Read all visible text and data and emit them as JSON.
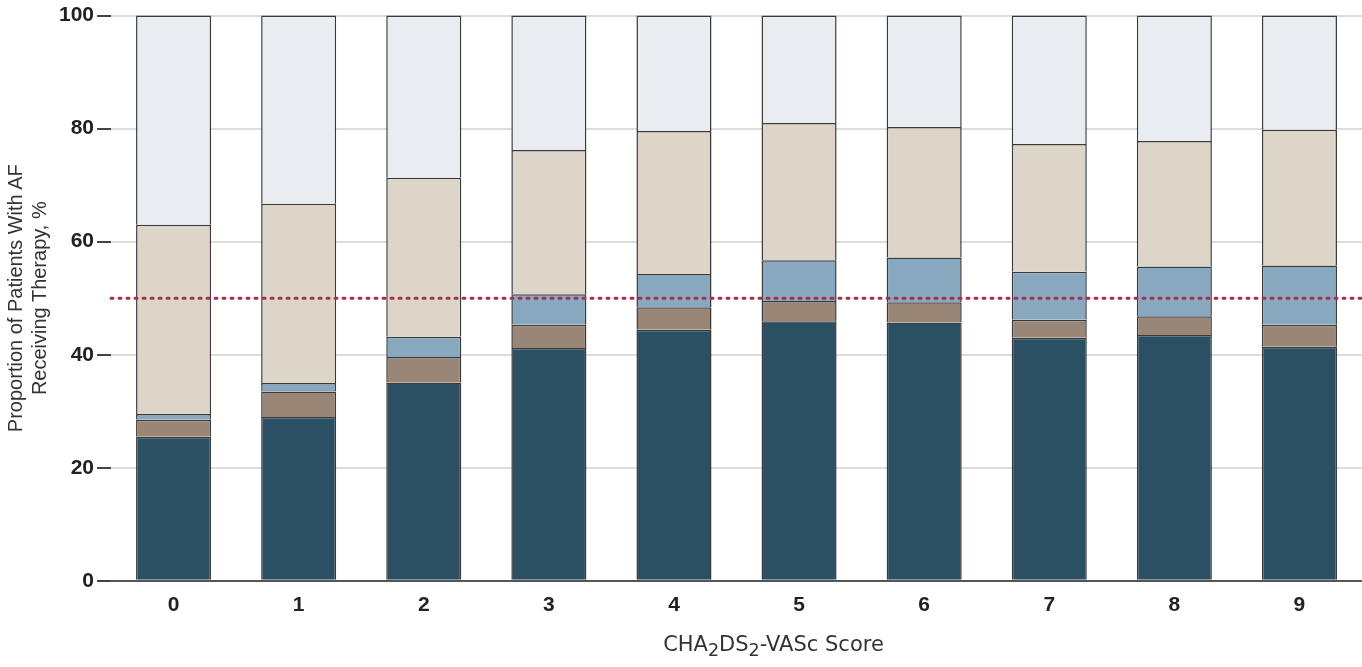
{
  "chart_data": {
    "type": "bar",
    "stacked": true,
    "xlabel": "CHA$_{2}$DS$_{2}$-VASc Score",
    "ylabel": "Proportion of Patients With AF\nReceiving Therapy, %",
    "categories": [
      "0",
      "1",
      "2",
      "3",
      "4",
      "5",
      "6",
      "7",
      "8",
      "9"
    ],
    "series": [
      {
        "color": "#2b5063",
        "values": [
          25.5,
          29,
          35.1,
          41.2,
          44.4,
          45.9,
          45.7,
          43,
          43.5,
          41.4
        ]
      },
      {
        "color": "#9a8677",
        "values": [
          3,
          4.5,
          4.5,
          4.1,
          4,
          3.6,
          3.6,
          3.2,
          3.3,
          3.9
        ]
      },
      {
        "color": "#88a8c0",
        "values": [
          1,
          1.5,
          3.6,
          5.4,
          5.9,
          7.2,
          7.9,
          8.5,
          8.8,
          10.5
        ]
      },
      {
        "color": "#ddd5c8",
        "values": [
          33.5,
          31.7,
          28.1,
          25.5,
          25.3,
          24.3,
          23.1,
          22.6,
          22.2,
          24
        ]
      },
      {
        "color": "#e9edf2",
        "values": [
          37,
          33.3,
          28.7,
          23.8,
          20.4,
          19,
          19.7,
          22.7,
          22.2,
          20.2
        ]
      }
    ],
    "ylim": [
      0,
      100
    ],
    "yticks": [
      0,
      20,
      40,
      60,
      80,
      100
    ],
    "grid": "y",
    "legend": false,
    "ref_lines": [
      {
        "axis": "y",
        "value": 50,
        "color": "#a3304f",
        "line_style": "dotted"
      }
    ]
  }
}
